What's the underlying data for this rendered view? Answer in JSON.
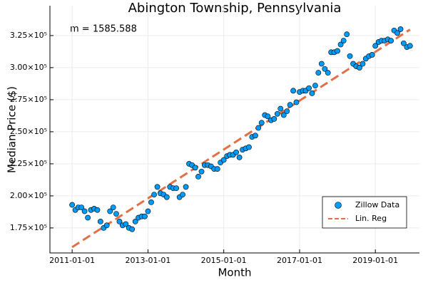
{
  "chart_data": {
    "type": "scatter",
    "title": "Abington Township, Pennsylvania",
    "x_label": "Month",
    "y_label": "Median Price ($)",
    "annotation": "m = 1585.588",
    "series": [
      {
        "name": "Zillow Data",
        "color": "#009af9",
        "kind": "scatter",
        "x": [
          "2011-01-01",
          "2011-02-01",
          "2011-03-01",
          "2011-04-01",
          "2011-05-01",
          "2011-06-01",
          "2011-07-01",
          "2011-08-01",
          "2011-09-01",
          "2011-10-01",
          "2011-11-01",
          "2011-12-01",
          "2012-01-01",
          "2012-02-01",
          "2012-03-01",
          "2012-04-01",
          "2012-05-01",
          "2012-06-01",
          "2012-07-01",
          "2012-08-01",
          "2012-09-01",
          "2012-10-01",
          "2012-11-01",
          "2012-12-01",
          "2013-01-01",
          "2013-02-01",
          "2013-03-01",
          "2013-04-01",
          "2013-05-01",
          "2013-06-01",
          "2013-07-01",
          "2013-08-01",
          "2013-09-01",
          "2013-10-01",
          "2013-11-01",
          "2013-12-01",
          "2014-01-01",
          "2014-02-01",
          "2014-03-01",
          "2014-04-01",
          "2014-05-01",
          "2014-06-01",
          "2014-07-01",
          "2014-08-01",
          "2014-09-01",
          "2014-10-01",
          "2014-11-01",
          "2014-12-01",
          "2015-01-01",
          "2015-02-01",
          "2015-03-01",
          "2015-04-01",
          "2015-05-01",
          "2015-06-01",
          "2015-07-01",
          "2015-08-01",
          "2015-09-01",
          "2015-10-01",
          "2015-11-01",
          "2015-12-01",
          "2016-01-01",
          "2016-02-01",
          "2016-03-01",
          "2016-04-01",
          "2016-05-01",
          "2016-06-01",
          "2016-07-01",
          "2016-08-01",
          "2016-09-01",
          "2016-10-01",
          "2016-11-01",
          "2016-12-01",
          "2017-01-01",
          "2017-02-01",
          "2017-03-01",
          "2017-04-01",
          "2017-05-01",
          "2017-06-01",
          "2017-07-01",
          "2017-08-01",
          "2017-09-01",
          "2017-10-01",
          "2017-11-01",
          "2017-12-01",
          "2018-01-01",
          "2018-02-01",
          "2018-03-01",
          "2018-04-01",
          "2018-05-01",
          "2018-06-01",
          "2018-07-01",
          "2018-08-01",
          "2018-09-01",
          "2018-10-01",
          "2018-11-01",
          "2018-12-01",
          "2019-01-01",
          "2019-02-01",
          "2019-03-01",
          "2019-04-01",
          "2019-05-01",
          "2019-06-01",
          "2019-07-01",
          "2019-08-01",
          "2019-09-01",
          "2019-10-01",
          "2019-11-01",
          "2019-12-01"
        ],
        "values": [
          193000,
          189000,
          191000,
          191000,
          188000,
          183000,
          189000,
          190000,
          189000,
          180000,
          175000,
          177000,
          188000,
          191000,
          186000,
          180000,
          177000,
          178000,
          175000,
          174000,
          180000,
          183000,
          184000,
          184000,
          188000,
          195000,
          201000,
          207000,
          202000,
          201000,
          199000,
          207000,
          206000,
          206000,
          199000,
          201000,
          207000,
          225000,
          224000,
          222000,
          215000,
          219000,
          224000,
          224000,
          223000,
          221000,
          221000,
          226000,
          228000,
          231000,
          232000,
          232000,
          234000,
          230000,
          236000,
          237000,
          238000,
          246000,
          247000,
          253000,
          257000,
          263000,
          262000,
          259000,
          260000,
          264000,
          268000,
          263000,
          266000,
          271000,
          282000,
          273000,
          281000,
          282000,
          282000,
          284000,
          280000,
          286000,
          296000,
          303000,
          299000,
          296000,
          312000,
          312000,
          313000,
          318000,
          321000,
          326000,
          309000,
          303000,
          301000,
          300000,
          303000,
          307000,
          309000,
          310000,
          317000,
          320000,
          321000,
          321000,
          322000,
          321000,
          329000,
          327000,
          330000,
          319000,
          316000,
          317000
        ]
      },
      {
        "name": "Lin. Reg",
        "color": "#e26f46",
        "kind": "line",
        "x": [
          "2011-01-01",
          "2019-12-01"
        ],
        "values": [
          160000,
          329700
        ]
      }
    ],
    "xlim": [
      "2010-06-01",
      "2020-03-01"
    ],
    "xticks": [
      "2011-01-01",
      "2013-01-01",
      "2015-01-01",
      "2017-01-01",
      "2019-01-01"
    ],
    "ylim": [
      155500,
      348300
    ],
    "yticks": [
      {
        "value": 175000,
        "label": "1.75×10⁵"
      },
      {
        "value": 200000,
        "label": "2.00×10⁵"
      },
      {
        "value": 225000,
        "label": "2.25×10⁵"
      },
      {
        "value": 250000,
        "label": "2.50×10⁵"
      },
      {
        "value": 275000,
        "label": "2.75×10⁵"
      },
      {
        "value": 300000,
        "label": "3.00×10⁵"
      },
      {
        "value": 325000,
        "label": "3.25×10⁵"
      }
    ],
    "grid": true,
    "legend": "bottom-right"
  }
}
